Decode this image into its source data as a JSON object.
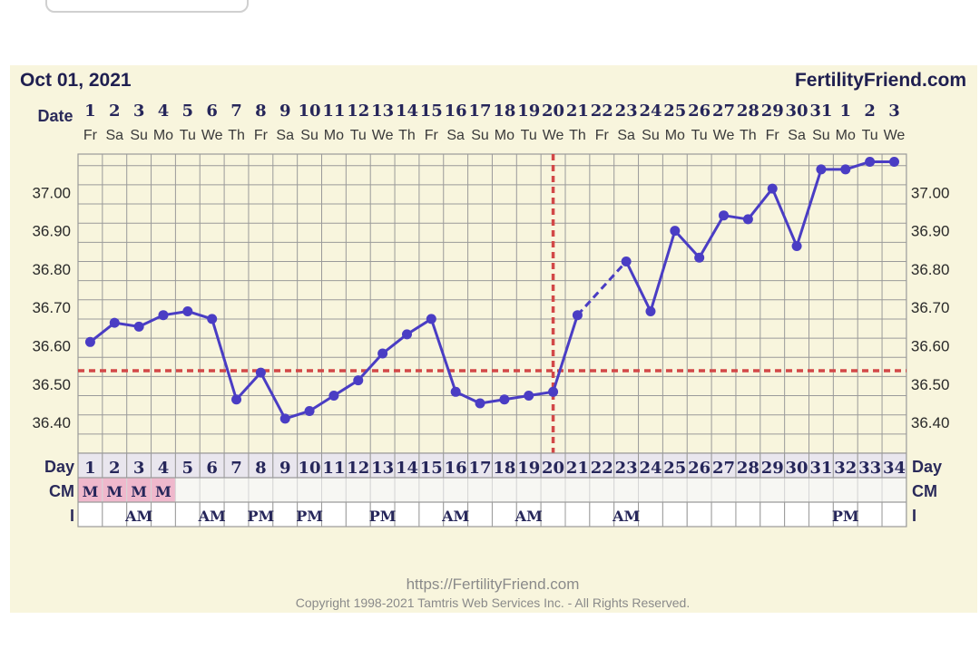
{
  "header": {
    "date": "Oct 01, 2021",
    "site": "FertilityFriend.com"
  },
  "labels": {
    "date_row": "Date",
    "day_row": "Day",
    "cm_row": "CM",
    "i_row": "I"
  },
  "footer": {
    "url": "https://FertilityFriend.com",
    "copyright": "Copyright 1998-2021 Tamtris Web Services Inc. - All Rights Reserved."
  },
  "colors": {
    "line": "#4a3dc4",
    "reference": "#d24848",
    "grid": "#9a9a9a",
    "cm_cell": "#efb8cc"
  },
  "chart_data": {
    "type": "line",
    "dates": [
      "1",
      "2",
      "3",
      "4",
      "5",
      "6",
      "7",
      "8",
      "9",
      "10",
      "11",
      "12",
      "13",
      "14",
      "15",
      "16",
      "17",
      "18",
      "19",
      "20",
      "21",
      "22",
      "23",
      "24",
      "25",
      "26",
      "27",
      "28",
      "29",
      "30",
      "31",
      "1",
      "2",
      "3"
    ],
    "weekdays": [
      "Fr",
      "Sa",
      "Su",
      "Mo",
      "Tu",
      "We",
      "Th",
      "Fr",
      "Sa",
      "Su",
      "Mo",
      "Tu",
      "We",
      "Th",
      "Fr",
      "Sa",
      "Su",
      "Mo",
      "Tu",
      "We",
      "Th",
      "Fr",
      "Sa",
      "Su",
      "Mo",
      "Tu",
      "We",
      "Th",
      "Fr",
      "Sa",
      "Su",
      "Mo",
      "Tu",
      "We"
    ],
    "cycle_days": [
      "1",
      "2",
      "3",
      "4",
      "5",
      "6",
      "7",
      "8",
      "9",
      "10",
      "11",
      "12",
      "13",
      "14",
      "15",
      "16",
      "17",
      "18",
      "19",
      "20",
      "21",
      "22",
      "23",
      "24",
      "25",
      "26",
      "27",
      "28",
      "29",
      "30",
      "31",
      "32",
      "33",
      "34"
    ],
    "temperatures": [
      36.61,
      36.66,
      36.65,
      36.68,
      36.69,
      36.67,
      36.46,
      36.53,
      36.41,
      36.43,
      36.47,
      36.51,
      36.58,
      36.63,
      36.67,
      36.48,
      36.45,
      36.46,
      36.47,
      36.48,
      36.68,
      null,
      36.82,
      36.69,
      36.9,
      36.83,
      36.94,
      36.93,
      37.01,
      36.86,
      37.06,
      37.06,
      37.08,
      37.08
    ],
    "y_ticks": [
      "37.00",
      "36.90",
      "36.80",
      "36.70",
      "36.60",
      "36.50",
      "36.40"
    ],
    "ylim": [
      36.32,
      37.1
    ],
    "coverline": 36.535,
    "ovulation_day": 20,
    "cervical_mucus": [
      "M",
      "M",
      "M",
      "M",
      "",
      "",
      "",
      "",
      "",
      "",
      "",
      "",
      "",
      "",
      "",
      "",
      "",
      "",
      "",
      "",
      "",
      "",
      "",
      "",
      "",
      "",
      "",
      "",
      "",
      "",
      "",
      "",
      "",
      ""
    ],
    "intercourse": [
      "",
      "",
      "AM",
      "",
      "",
      "AM",
      "",
      "PM",
      "",
      "PM",
      "",
      "",
      "PM",
      "",
      "",
      "AM",
      "",
      "",
      "AM",
      "",
      "",
      "",
      "AM",
      "",
      "",
      "",
      "",
      "",
      "",
      "",
      "",
      "PM",
      "",
      ""
    ],
    "grid": true
  }
}
